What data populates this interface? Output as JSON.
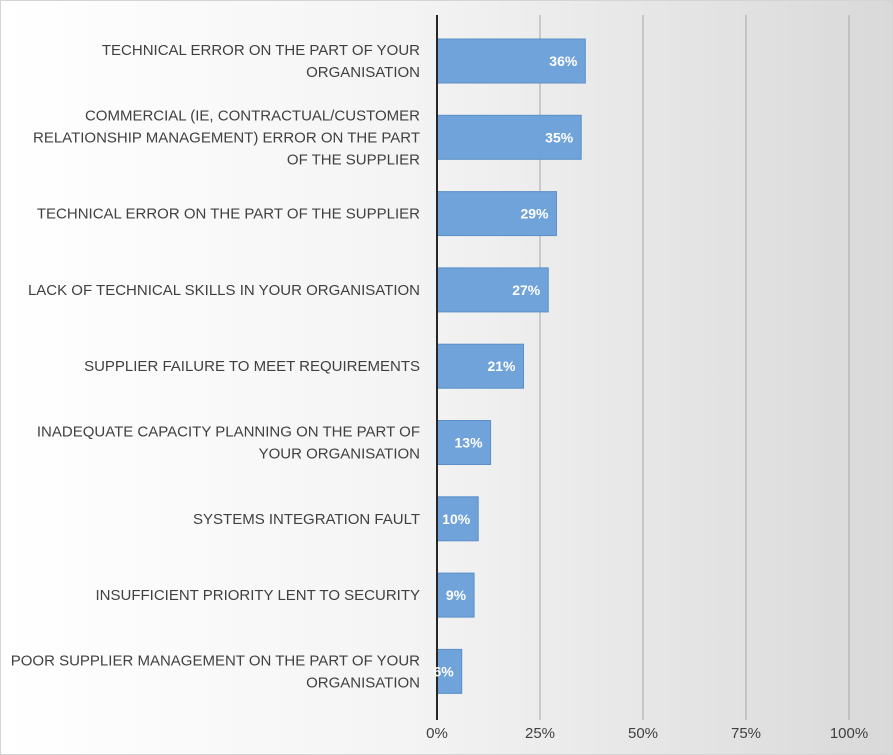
{
  "chart_data": {
    "type": "bar",
    "orientation": "horizontal",
    "categories": [
      "TECHNICAL ERROR ON THE PART OF YOUR ORGANISATION",
      "COMMERCIAL (IE, CONTRACTUAL/CUSTOMER RELATIONSHIP MANAGEMENT) ERROR ON THE PART OF THE SUPPLIER",
      "TECHNICAL ERROR ON THE PART OF THE SUPPLIER",
      "LACK OF TECHNICAL SKILLS IN YOUR ORGANISATION",
      "SUPPLIER FAILURE TO MEET REQUIREMENTS",
      "INADEQUATE CAPACITY PLANNING ON THE PART OF YOUR ORGANISATION",
      "SYSTEMS INTEGRATION FAULT",
      "INSUFFICIENT PRIORITY LENT TO SECURITY",
      "POOR SUPPLIER MANAGEMENT ON THE PART OF YOUR ORGANISATION"
    ],
    "category_lines": [
      [
        "TECHNICAL ERROR ON THE PART OF YOUR",
        "ORGANISATION"
      ],
      [
        "COMMERCIAL (IE, CONTRACTUAL/CUSTOMER",
        "RELATIONSHIP MANAGEMENT) ERROR ON THE PART",
        "OF THE SUPPLIER"
      ],
      [
        "TECHNICAL ERROR ON THE PART OF THE SUPPLIER"
      ],
      [
        "LACK OF TECHNICAL SKILLS IN YOUR ORGANISATION"
      ],
      [
        "SUPPLIER FAILURE TO MEET REQUIREMENTS"
      ],
      [
        "INADEQUATE CAPACITY PLANNING ON THE PART OF",
        "YOUR ORGANISATION"
      ],
      [
        "SYSTEMS INTEGRATION FAULT"
      ],
      [
        "INSUFFICIENT PRIORITY LENT TO SECURITY"
      ],
      [
        "POOR SUPPLIER MANAGEMENT ON THE PART OF YOUR",
        "ORGANISATION"
      ]
    ],
    "values": [
      36,
      35,
      29,
      27,
      21,
      13,
      10,
      9,
      6
    ],
    "data_labels": [
      "36%",
      "35%",
      "29%",
      "27%",
      "21%",
      "13%",
      "10%",
      "9%",
      "6%"
    ],
    "xlim": [
      0,
      100
    ],
    "x_ticks": [
      0,
      25,
      50,
      75,
      100
    ],
    "x_tick_labels": [
      "0%",
      "25%",
      "50%",
      "75%",
      "100%"
    ],
    "title": "",
    "xlabel": "",
    "ylabel": "",
    "grid": "vertical",
    "legend": "none",
    "bar_color": "#6fa3da",
    "bar_edge_color": "#5b8fc9",
    "gridline_color": "#a6a6a6",
    "axis_color": "#262626"
  }
}
